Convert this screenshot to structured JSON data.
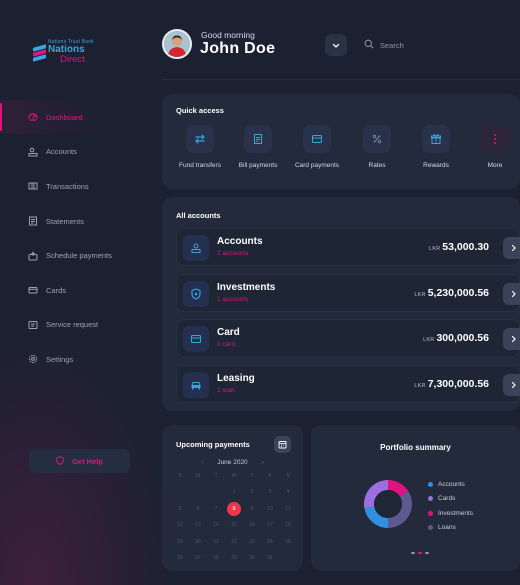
{
  "brand": {
    "logo_top": "Nations Trust Bank",
    "logo_mid": "Nations",
    "logo_bottom": "Direct",
    "colors": {
      "accent": "#e0137f",
      "blue": "#3aa3e0",
      "bg": "#1b2130",
      "card": "#222a3b"
    }
  },
  "sidebar": {
    "items": [
      {
        "label": "Dashboard",
        "icon": "dashboard-icon",
        "active": true
      },
      {
        "label": "Accounts",
        "icon": "accounts-icon"
      },
      {
        "label": "Transactions",
        "icon": "transactions-icon"
      },
      {
        "label": "Statements",
        "icon": "statements-icon"
      },
      {
        "label": "Schedule payments",
        "icon": "schedule-icon"
      },
      {
        "label": "Cards",
        "icon": "card-icon"
      },
      {
        "label": "Service request",
        "icon": "service-icon"
      },
      {
        "label": "Settings",
        "icon": "gear-icon"
      }
    ],
    "help_label": "Get Help"
  },
  "header": {
    "greeting": "Good morning",
    "user_name": "John Doe",
    "search_placeholder": "Search"
  },
  "quick_access": {
    "title": "Quick access",
    "items": [
      {
        "label": "Fund transfers",
        "icon": "transfer-icon"
      },
      {
        "label": "Bill payments",
        "icon": "bill-icon"
      },
      {
        "label": "Card payments",
        "icon": "card-icon"
      },
      {
        "label": "Rates",
        "icon": "percent-icon"
      },
      {
        "label": "Rewards",
        "icon": "gift-icon"
      },
      {
        "label": "More",
        "icon": "more-icon"
      }
    ]
  },
  "accounts": {
    "title": "All accounts",
    "currency": "LKR",
    "rows": [
      {
        "name": "Accounts",
        "sub": "2 accounts",
        "amount": "53,000.30",
        "icon": "wallet-icon"
      },
      {
        "name": "Investments",
        "sub": "1 accounts",
        "amount": "5,230,000.56",
        "icon": "shield-icon"
      },
      {
        "name": "Card",
        "sub": "1 card",
        "amount": "300,000.56",
        "icon": "card-icon"
      },
      {
        "name": "Leasing",
        "sub": "1 loan",
        "amount": "7,300,000.56",
        "icon": "car-icon"
      }
    ]
  },
  "upcoming": {
    "title": "Upcoming payments",
    "month": "June 2020",
    "weekdays": [
      "S",
      "M",
      "T",
      "W",
      "T",
      "F",
      "S"
    ],
    "weeks": [
      [
        "",
        "",
        "",
        "1",
        "2",
        "3",
        "4"
      ],
      [
        "5",
        "6",
        "7",
        "8",
        "9",
        "10",
        "11"
      ],
      [
        "12",
        "13",
        "14",
        "15",
        "16",
        "17",
        "18"
      ],
      [
        "19",
        "20",
        "21",
        "22",
        "23",
        "24",
        "25"
      ],
      [
        "26",
        "27",
        "28",
        "29",
        "30",
        "31",
        ""
      ]
    ],
    "selected_day": "8"
  },
  "portfolio": {
    "title": "Portfolio summary",
    "legend": [
      {
        "label": "Accounts",
        "color": "#2f8fe0"
      },
      {
        "label": "Cards",
        "color": "#9b6fe0"
      },
      {
        "label": "Investments",
        "color": "#e0137f"
      },
      {
        "label": "Loans",
        "color": "#5d5890"
      }
    ],
    "segments": [
      {
        "name": "Investments",
        "fraction": 0.16,
        "color": "#e0137f"
      },
      {
        "name": "Loans",
        "fraction": 0.34,
        "color": "#5d5890"
      },
      {
        "name": "Accounts",
        "fraction": 0.22,
        "color": "#2f8fe0"
      },
      {
        "name": "Cards",
        "fraction": 0.28,
        "color": "#9b6fe0"
      }
    ]
  }
}
